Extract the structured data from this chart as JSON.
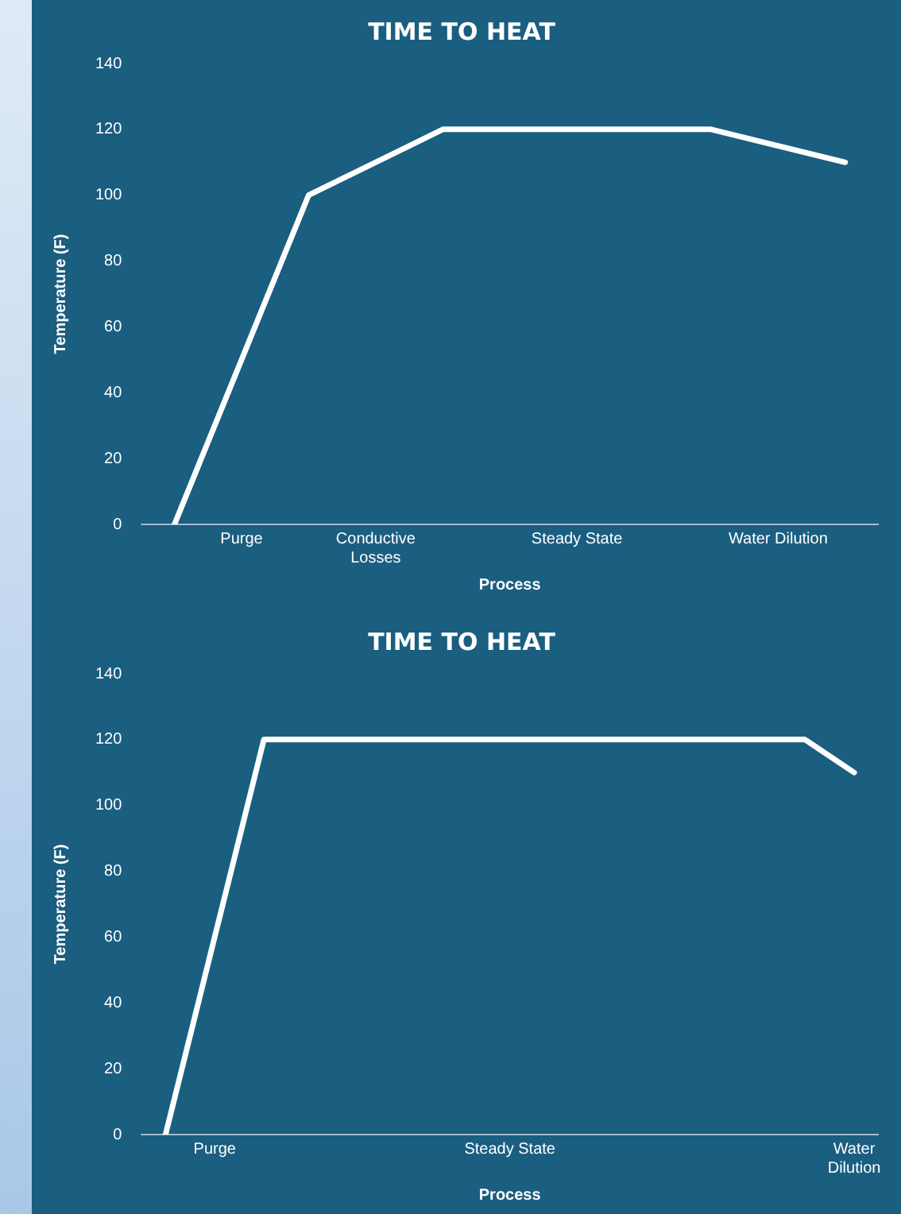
{
  "chart_data": [
    {
      "type": "line",
      "title": "TIME TO HEAT",
      "xlabel": "Process",
      "ylabel": "Temperature (F)",
      "categories": [
        null,
        "Purge",
        null,
        "Conductive\nLosses",
        null,
        null,
        "Steady State",
        null,
        null,
        "Water Dilution",
        null
      ],
      "series": [
        {
          "color": "#ffffff",
          "values": [
            0,
            null,
            100,
            null,
            120,
            null,
            null,
            null,
            120,
            null,
            110
          ]
        }
      ],
      "ylim": [
        0,
        140
      ],
      "yticks": [
        0,
        20,
        40,
        60,
        80,
        100,
        120,
        140
      ],
      "grid": false,
      "legend": false,
      "marker": "none",
      "line_style": "solid"
    },
    {
      "type": "line",
      "title": "TIME TO HEAT",
      "xlabel": "Process",
      "ylabel": "Temperature (F)",
      "categories": [
        null,
        "Purge",
        null,
        null,
        null,
        null,
        null,
        "Steady State",
        null,
        null,
        null,
        null,
        null,
        null,
        "Water\nDilution"
      ],
      "series": [
        {
          "color": "#ffffff",
          "values": [
            0,
            null,
            120,
            null,
            null,
            null,
            null,
            null,
            null,
            null,
            null,
            null,
            null,
            120,
            110
          ]
        }
      ],
      "ylim": [
        0,
        140
      ],
      "yticks": [
        0,
        20,
        40,
        60,
        80,
        100,
        120,
        140
      ],
      "grid": false,
      "legend": false,
      "marker": "none",
      "line_style": "solid"
    }
  ]
}
